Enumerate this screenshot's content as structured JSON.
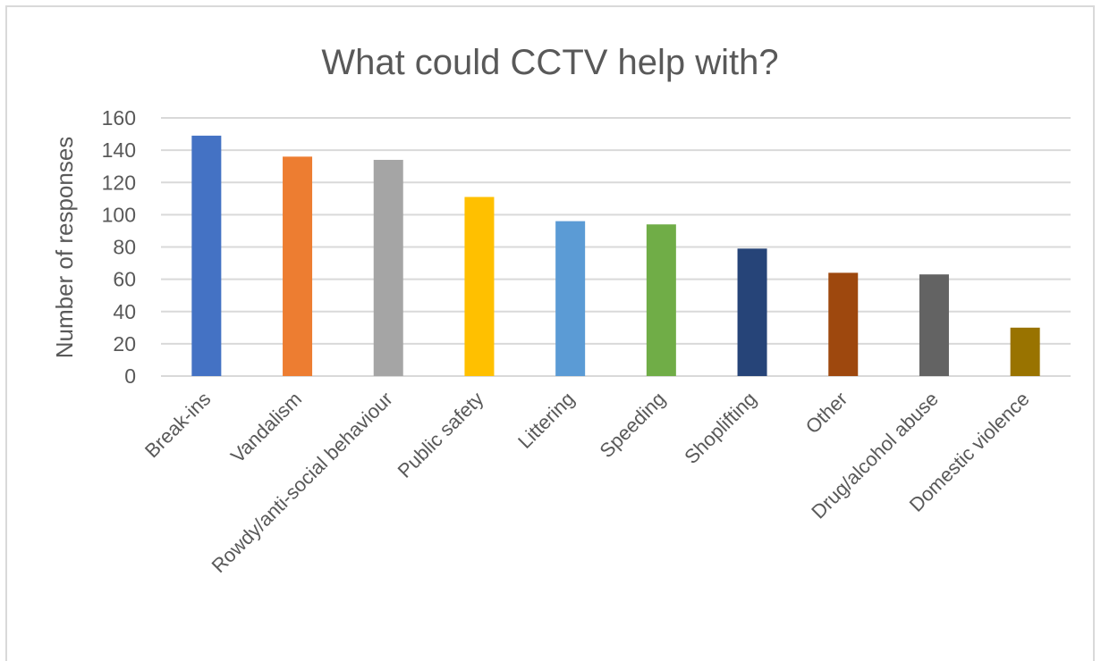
{
  "chart_data": {
    "type": "bar",
    "title": "What could CCTV help with?",
    "xlabel": "",
    "ylabel": "Number of responses",
    "ylim": [
      0,
      160
    ],
    "yticks": [
      0,
      20,
      40,
      60,
      80,
      100,
      120,
      140,
      160
    ],
    "grid": true,
    "legend": "none",
    "categories": [
      "Break-ins",
      "Vandalism",
      "Rowdy/anti-social behaviour",
      "Public safety",
      "Littering",
      "Speeding",
      "Shoplifting",
      "Other",
      "Drug/alcohol abuse",
      "Domestic violence"
    ],
    "values": [
      149,
      136,
      134,
      111,
      96,
      94,
      79,
      64,
      63,
      30
    ],
    "colors": [
      "#4472c4",
      "#ed7d31",
      "#a5a5a5",
      "#ffc000",
      "#5b9bd5",
      "#70ad47",
      "#264478",
      "#9e480e",
      "#636363",
      "#997300"
    ]
  }
}
